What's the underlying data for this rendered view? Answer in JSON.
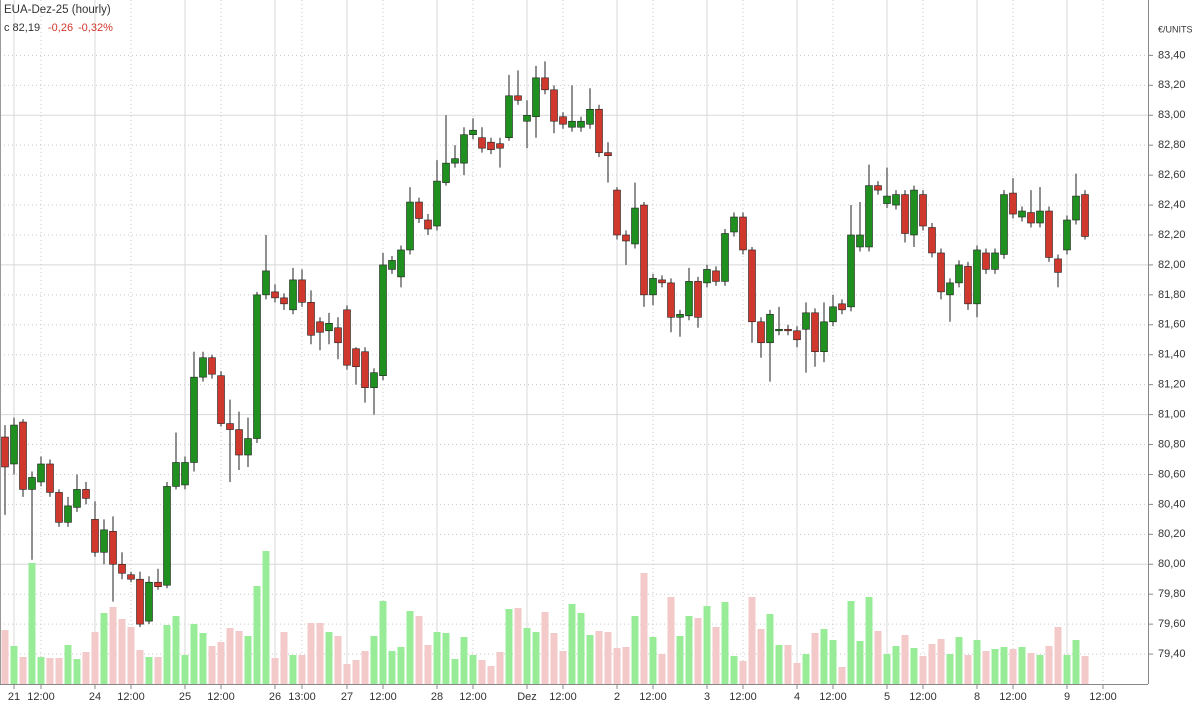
{
  "chart_data": {
    "type": "candlestick",
    "title": "EUA-Dez-25 (hourly)",
    "legend_text": [
      "c 82,19",
      "-0,26",
      "-0,32%"
    ],
    "y_axis_label": "€/UNITS",
    "up_color": "#1f8f1f",
    "down_color": "#d0382d",
    "volume_up_color": "#98ec98",
    "volume_down_color": "#f3c9c9",
    "grid": true,
    "ylim": [
      79.2,
      83.77
    ],
    "yticks": [
      {
        "value": 79.4,
        "label": "79,40"
      },
      {
        "value": 79.6,
        "label": "79,60"
      },
      {
        "value": 79.8,
        "label": "79,80"
      },
      {
        "value": 80,
        "label": "80,00"
      },
      {
        "value": 80.2,
        "label": "80,20"
      },
      {
        "value": 80.4,
        "label": "80,40"
      },
      {
        "value": 80.6,
        "label": "80,60"
      },
      {
        "value": 80.8,
        "label": "80,80"
      },
      {
        "value": 81,
        "label": "81,00"
      },
      {
        "value": 81.2,
        "label": "81,20"
      },
      {
        "value": 81.4,
        "label": "81,40"
      },
      {
        "value": 81.6,
        "label": "81,60"
      },
      {
        "value": 81.8,
        "label": "81,80"
      },
      {
        "value": 82,
        "label": "82,00"
      },
      {
        "value": 82.2,
        "label": "82,20"
      },
      {
        "value": 82.4,
        "label": "82,40"
      },
      {
        "value": 82.6,
        "label": "82,60"
      },
      {
        "value": 82.8,
        "label": "82,80"
      },
      {
        "value": 83,
        "label": "83,00"
      },
      {
        "value": 83.2,
        "label": "83,20"
      },
      {
        "value": 83.4,
        "label": "83,40"
      }
    ],
    "categories": [
      null,
      "21",
      null,
      null,
      "12:00",
      null,
      null,
      null,
      null,
      null,
      "24",
      null,
      null,
      null,
      "12:00",
      null,
      null,
      null,
      null,
      null,
      "25",
      null,
      null,
      null,
      "12:00",
      null,
      null,
      null,
      null,
      null,
      "26",
      null,
      null,
      "13:00",
      null,
      null,
      null,
      null,
      "27",
      null,
      null,
      null,
      "12:00",
      null,
      null,
      null,
      null,
      null,
      "28",
      null,
      null,
      null,
      "12:00",
      null,
      null,
      null,
      null,
      null,
      "Dez",
      null,
      null,
      null,
      "12:00",
      null,
      null,
      null,
      null,
      null,
      "2",
      null,
      null,
      null,
      "12:00",
      null,
      null,
      null,
      null,
      null,
      "3",
      null,
      null,
      null,
      "12:00",
      null,
      null,
      null,
      null,
      null,
      "4",
      null,
      null,
      null,
      "12:00",
      null,
      null,
      null,
      null,
      null,
      "5",
      null,
      null,
      null,
      "12:00",
      null,
      null,
      null,
      null,
      null,
      "8",
      null,
      null,
      null,
      "12:00",
      null,
      null,
      null,
      null,
      null,
      "9",
      null,
      null,
      null,
      "12:00",
      null,
      null,
      null,
      null,
      null
    ],
    "open": [
      80.85,
      80.67,
      80.95,
      80.5,
      80.55,
      80.67,
      80.48,
      80.28,
      80.38,
      80.5,
      80.3,
      80.08,
      80.22,
      80.0,
      79.93,
      79.9,
      79.62,
      79.88,
      79.86,
      80.52,
      80.53,
      80.68,
      81.25,
      81.38,
      81.26,
      80.94,
      80.9,
      80.73,
      80.84,
      81.8,
      81.82,
      81.78,
      81.7,
      81.9,
      81.75,
      81.62,
      81.56,
      81.58,
      81.7,
      81.44,
      81.42,
      81.18,
      81.26,
      81.97,
      81.92,
      82.1,
      82.42,
      82.3,
      82.26,
      82.55,
      82.68,
      82.68,
      82.87,
      82.85,
      82.82,
      82.81,
      82.85,
      83.13,
      82.96,
      82.99,
      83.25,
      83.17,
      82.99,
      82.92,
      82.92,
      82.94,
      83.04,
      82.75,
      82.5,
      82.2,
      82.14,
      82.4,
      81.8,
      81.9,
      81.88,
      81.65,
      81.66,
      81.89,
      81.88,
      81.96,
      81.89,
      82.22,
      82.32,
      82.1,
      81.62,
      81.48,
      81.56,
      81.57,
      81.56,
      81.57,
      81.68,
      81.42,
      81.62,
      81.74,
      81.72,
      82.12,
      82.12,
      82.53,
      82.41,
      82.4,
      82.47,
      82.2,
      82.47,
      82.25,
      82.08,
      81.8,
      81.88,
      81.99,
      81.74,
      82.08,
      81.97,
      82.07,
      82.48,
      82.32,
      82.35,
      82.28,
      82.36,
      82.04,
      82.1,
      82.3,
      82.47,
      null,
      null,
      null,
      null,
      null,
      null,
      null
    ],
    "high": [
      80.93,
      80.98,
      80.97,
      80.62,
      80.72,
      80.7,
      80.5,
      80.45,
      80.6,
      80.55,
      80.42,
      80.3,
      80.32,
      80.08,
      79.95,
      79.95,
      79.92,
      79.97,
      80.55,
      80.88,
      80.72,
      81.42,
      81.42,
      81.4,
      81.29,
      81.1,
      81.02,
      80.98,
      81.82,
      82.2,
      81.87,
      81.81,
      81.98,
      81.97,
      81.83,
      81.65,
      81.68,
      81.65,
      81.73,
      81.45,
      81.45,
      81.31,
      82.08,
      82.06,
      82.13,
      82.52,
      82.45,
      82.34,
      82.7,
      83.0,
      82.8,
      82.92,
      82.98,
      82.92,
      82.85,
      82.85,
      83.27,
      83.3,
      83.1,
      83.33,
      83.36,
      83.2,
      83.02,
      83.2,
      82.99,
      83.18,
      83.07,
      82.82,
      82.52,
      82.23,
      82.55,
      82.42,
      81.94,
      81.93,
      81.91,
      81.7,
      81.98,
      81.92,
      82.0,
      81.99,
      82.24,
      82.35,
      82.35,
      82.12,
      81.65,
      81.7,
      81.72,
      81.6,
      81.59,
      81.75,
      81.71,
      81.75,
      81.8,
      81.77,
      82.4,
      82.42,
      82.67,
      82.56,
      82.65,
      82.5,
      82.5,
      82.53,
      82.5,
      82.28,
      82.11,
      81.91,
      82.03,
      82.02,
      82.13,
      82.11,
      82.11,
      82.5,
      82.58,
      82.39,
      82.5,
      82.52,
      82.39,
      82.07,
      82.33,
      82.61,
      82.5,
      null,
      null,
      null,
      null,
      null,
      null,
      null
    ],
    "low": [
      80.33,
      80.6,
      80.45,
      80.03,
      80.52,
      80.45,
      80.25,
      80.25,
      80.35,
      80.4,
      80.05,
      80.0,
      79.75,
      79.9,
      79.88,
      79.58,
      79.6,
      79.83,
      79.84,
      80.5,
      80.5,
      80.62,
      81.22,
      81.24,
      80.92,
      80.55,
      80.63,
      80.65,
      80.81,
      81.77,
      81.75,
      81.7,
      81.67,
      81.72,
      81.47,
      81.43,
      81.47,
      81.37,
      81.3,
      81.2,
      81.08,
      81.0,
      81.23,
      81.94,
      81.85,
      82.07,
      82.28,
      82.2,
      82.23,
      82.53,
      82.65,
      82.6,
      82.84,
      82.75,
      82.74,
      82.65,
      82.83,
      83.07,
      82.78,
      82.85,
      83.14,
      82.88,
      82.91,
      82.89,
      82.89,
      82.91,
      82.72,
      82.55,
      82.17,
      82.0,
      82.11,
      81.72,
      81.73,
      81.85,
      81.55,
      81.52,
      81.63,
      81.58,
      81.85,
      81.86,
      81.86,
      82.19,
      82.07,
      81.48,
      81.38,
      81.22,
      81.53,
      81.53,
      81.45,
      81.28,
      81.32,
      81.35,
      81.59,
      81.67,
      81.69,
      82.09,
      82.09,
      82.47,
      82.38,
      82.37,
      82.15,
      82.12,
      82.23,
      82.05,
      81.77,
      81.62,
      81.85,
      81.7,
      81.65,
      81.94,
      81.94,
      82.04,
      82.31,
      82.29,
      82.25,
      82.25,
      82.02,
      81.85,
      82.07,
      82.27,
      82.17,
      null,
      null,
      null,
      null,
      null,
      null,
      null
    ],
    "close": [
      80.65,
      80.93,
      80.5,
      80.58,
      80.67,
      80.48,
      80.28,
      80.39,
      80.5,
      80.44,
      80.08,
      80.23,
      80.0,
      79.94,
      79.9,
      79.6,
      79.88,
      79.85,
      80.52,
      80.68,
      80.68,
      81.25,
      81.38,
      81.27,
      80.94,
      80.9,
      80.73,
      80.84,
      81.8,
      81.96,
      81.78,
      81.74,
      81.9,
      81.75,
      81.53,
      81.55,
      81.61,
      81.48,
      81.33,
      81.32,
      81.18,
      81.28,
      82.0,
      82.03,
      82.1,
      82.42,
      82.31,
      82.24,
      82.56,
      82.68,
      82.71,
      82.87,
      82.9,
      82.78,
      82.77,
      82.78,
      83.13,
      83.1,
      83.0,
      83.25,
      83.17,
      82.96,
      82.94,
      82.96,
      82.96,
      83.04,
      82.75,
      82.73,
      82.2,
      82.16,
      82.38,
      81.8,
      81.91,
      81.88,
      81.65,
      81.67,
      81.89,
      81.65,
      81.97,
      81.89,
      82.21,
      82.32,
      82.1,
      81.62,
      81.48,
      81.67,
      81.57,
      81.56,
      81.5,
      81.68,
      81.42,
      81.62,
      81.72,
      81.7,
      82.2,
      82.2,
      82.53,
      82.5,
      82.46,
      82.47,
      82.21,
      82.5,
      82.26,
      82.08,
      81.82,
      81.88,
      82.0,
      81.74,
      82.1,
      81.97,
      82.08,
      82.47,
      82.34,
      82.36,
      82.28,
      82.36,
      82.05,
      81.95,
      82.3,
      82.46,
      82.19,
      null,
      null,
      null,
      null,
      null,
      null,
      null
    ],
    "volume": [
      54,
      38,
      27,
      121,
      27,
      26,
      26,
      39,
      25,
      32,
      52,
      71,
      77,
      65,
      57,
      34,
      27,
      27,
      59,
      68,
      29,
      60,
      51,
      38,
      42,
      56,
      53,
      48,
      98,
      133,
      26,
      52,
      29,
      29,
      61,
      61,
      52,
      48,
      20,
      24,
      33,
      48,
      83,
      33,
      37,
      73,
      68,
      39,
      52,
      51,
      25,
      47,
      29,
      24,
      18,
      32,
      75,
      76,
      56,
      52,
      72,
      51,
      33,
      80,
      71,
      49,
      53,
      52,
      36,
      37,
      68,
      111,
      47,
      30,
      87,
      48,
      68,
      66,
      78,
      57,
      82,
      28,
      23,
      87,
      55,
      70,
      39,
      39,
      21,
      30,
      51,
      55,
      44,
      17,
      83,
      43,
      87,
      53,
      30,
      38,
      49,
      36,
      28,
      40,
      45,
      30,
      47,
      29,
      44,
      33,
      35,
      37,
      35,
      37,
      31,
      29,
      38,
      57,
      29,
      44,
      28,
      null,
      null,
      null,
      null,
      null,
      null,
      null
    ]
  }
}
